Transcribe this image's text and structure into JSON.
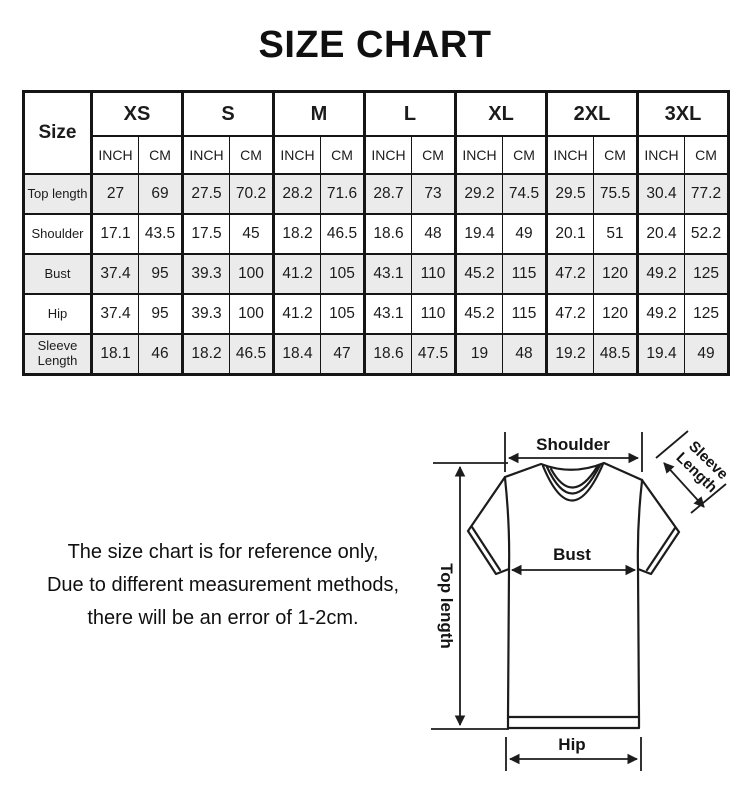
{
  "title": "SIZE CHART",
  "table": {
    "corner_label": "Size",
    "sizes": [
      "XS",
      "S",
      "M",
      "L",
      "XL",
      "2XL",
      "3XL"
    ],
    "unit_headers": [
      "INCH",
      "CM"
    ],
    "rows": [
      {
        "label": "Top length",
        "shaded": true,
        "values": [
          "27",
          "69",
          "27.5",
          "70.2",
          "28.2",
          "71.6",
          "28.7",
          "73",
          "29.2",
          "74.5",
          "29.5",
          "75.5",
          "30.4",
          "77.2"
        ]
      },
      {
        "label": "Shoulder",
        "shaded": false,
        "values": [
          "17.1",
          "43.5",
          "17.5",
          "45",
          "18.2",
          "46.5",
          "18.6",
          "48",
          "19.4",
          "49",
          "20.1",
          "51",
          "20.4",
          "52.2"
        ]
      },
      {
        "label": "Bust",
        "shaded": true,
        "values": [
          "37.4",
          "95",
          "39.3",
          "100",
          "41.2",
          "105",
          "43.1",
          "110",
          "45.2",
          "115",
          "47.2",
          "120",
          "49.2",
          "125"
        ]
      },
      {
        "label": "Hip",
        "shaded": false,
        "values": [
          "37.4",
          "95",
          "39.3",
          "100",
          "41.2",
          "105",
          "43.1",
          "110",
          "45.2",
          "115",
          "47.2",
          "120",
          "49.2",
          "125"
        ]
      },
      {
        "label": "Sleeve Length",
        "shaded": true,
        "values": [
          "18.1",
          "46",
          "18.2",
          "46.5",
          "18.4",
          "47",
          "18.6",
          "47.5",
          "19",
          "48",
          "19.2",
          "48.5",
          "19.4",
          "49"
        ]
      }
    ]
  },
  "note": {
    "line1": "The size chart is for reference only,",
    "line2": "Due to different measurement methods,",
    "line3": "there will be an error of 1-2cm."
  },
  "diagram": {
    "shoulder_label": "Shoulder",
    "sleeve_label_line1": "Sleeve",
    "sleeve_label_line2": "Length",
    "bust_label": "Bust",
    "top_length_label": "Top length",
    "hip_label": "Hip"
  },
  "colors": {
    "row_shade": "#ebebeb",
    "table_border": "#151515",
    "line_color": "#1c1c1c",
    "text_color": "#101010"
  }
}
